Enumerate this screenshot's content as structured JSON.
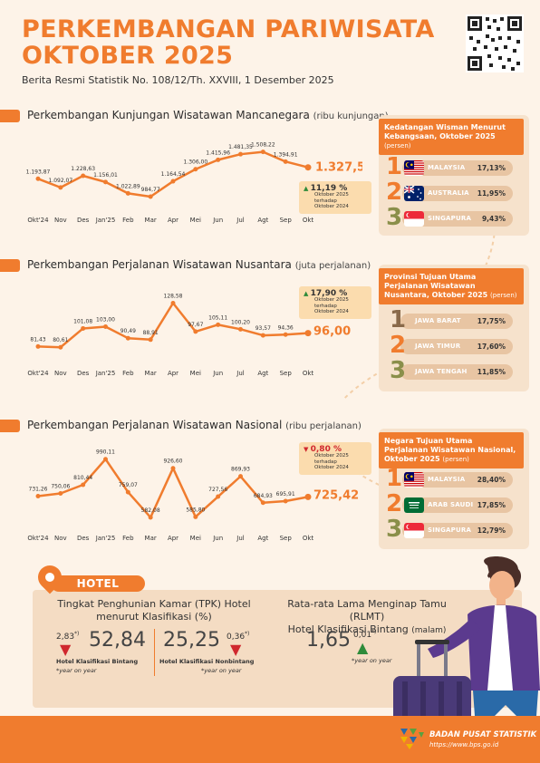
{
  "header": {
    "title_line1": "PERKEMBANGAN PARIWISATA",
    "title_line2": "OKTOBER 2025",
    "subtitle": "Berita Resmi Statistik No. 108/12/Th. XXVIII, 1 Desember 2025"
  },
  "months": [
    "Okt'24",
    "Nov",
    "Des",
    "Jan'25",
    "Feb",
    "Mar",
    "Apr",
    "Mei",
    "Jun",
    "Jul",
    "Agt",
    "Sep",
    "Okt"
  ],
  "sections": {
    "mancanegara": {
      "title": "Perkembangan Kunjungan Wisatawan Mancanegara",
      "unit": "(ribu kunjungan)",
      "labels": [
        "1.193,87",
        "1.092,07",
        "1.228,63",
        "1.156,01",
        "1.022,89",
        "984,77",
        "1.164,54",
        "1.306,00",
        "1.415,96",
        "1.481,35",
        "1.508,22",
        "1.394,91",
        "1.327,52"
      ],
      "callout": {
        "pct": "11,19 %",
        "line1": "Oktober 2025",
        "line2": "terhadap",
        "line3": "Oktober 2024",
        "direction": "up"
      }
    },
    "nusantara": {
      "title": "Perkembangan Perjalanan Wisatawan Nusantara",
      "unit": "(juta perjalanan)",
      "labels": [
        "81,43",
        "80,61",
        "101,08",
        "103,00",
        "90,49",
        "88,91",
        "128,58",
        "97,67",
        "105,11",
        "100,20",
        "93,57",
        "94,36",
        "96,00"
      ],
      "callout": {
        "pct": "17,90 %",
        "line1": "Oktober 2025",
        "line2": "terhadap",
        "line3": "Oktober 2024",
        "direction": "up"
      }
    },
    "nasional": {
      "title": "Perkembangan Perjalanan Wisatawan Nasional",
      "unit": "(ribu perjalanan)",
      "labels": [
        "731,26",
        "750,06",
        "810,44",
        "990,11",
        "759,07",
        "582,08",
        "926,60",
        "585,80",
        "727,56",
        "869,93",
        "684,93",
        "695,91",
        "725,42"
      ],
      "callout": {
        "pct": "0,80 %",
        "line1": "Oktober 2025",
        "line2": "terhadap",
        "line3": "Oktober 2024",
        "direction": "down"
      }
    }
  },
  "chart_data": [
    {
      "type": "line",
      "title": "Perkembangan Kunjungan Wisatawan Mancanegara",
      "ylabel": "ribu kunjungan",
      "x": [
        "Okt'24",
        "Nov",
        "Des",
        "Jan'25",
        "Feb",
        "Mar",
        "Apr",
        "Mei",
        "Jun",
        "Jul",
        "Agt",
        "Sep",
        "Okt"
      ],
      "values": [
        1193.87,
        1092.07,
        1228.63,
        1156.01,
        1022.89,
        984.77,
        1164.54,
        1306.0,
        1415.96,
        1481.35,
        1508.22,
        1394.91,
        1327.52
      ],
      "ylim": [
        900,
        1600
      ]
    },
    {
      "type": "line",
      "title": "Perkembangan Perjalanan Wisatawan Nusantara",
      "ylabel": "juta perjalanan",
      "x": [
        "Okt'24",
        "Nov",
        "Des",
        "Jan'25",
        "Feb",
        "Mar",
        "Apr",
        "Mei",
        "Jun",
        "Jul",
        "Agt",
        "Sep",
        "Okt"
      ],
      "values": [
        81.43,
        80.61,
        101.08,
        103.0,
        90.49,
        88.91,
        128.58,
        97.67,
        105.11,
        100.2,
        93.57,
        94.36,
        96.0
      ],
      "ylim": [
        70,
        135
      ]
    },
    {
      "type": "line",
      "title": "Perkembangan Perjalanan Wisatawan Nasional",
      "ylabel": "ribu perjalanan",
      "x": [
        "Okt'24",
        "Nov",
        "Des",
        "Jan'25",
        "Feb",
        "Mar",
        "Apr",
        "Mei",
        "Jun",
        "Jul",
        "Agt",
        "Sep",
        "Okt"
      ],
      "values": [
        731.26,
        750.06,
        810.44,
        990.11,
        759.07,
        582.08,
        926.6,
        585.8,
        727.56,
        869.93,
        684.93,
        695.91,
        725.42
      ],
      "ylim": [
        550,
        1020
      ]
    }
  ],
  "panels": {
    "wisman": {
      "title": "Kedatangan Wisman Menurut Kebangsaan, Oktober 2025",
      "unit": "(persen)",
      "items": [
        {
          "rank": "1",
          "name": "MALAYSIA",
          "value": "17,13%",
          "flag": "malaysia"
        },
        {
          "rank": "2",
          "name": "AUSTRALIA",
          "value": "11,95%",
          "flag": "australia"
        },
        {
          "rank": "3",
          "name": "SINGAPURA",
          "value": "9,43%",
          "flag": "singapura"
        }
      ]
    },
    "wisnus": {
      "title": "Provinsi Tujuan Utama Perjalanan Wisatawan Nusantara, Oktober 2025",
      "unit": "(persen)",
      "items": [
        {
          "rank": "1",
          "name": "JAWA BARAT",
          "value": "17,75%"
        },
        {
          "rank": "2",
          "name": "JAWA TIMUR",
          "value": "17,60%"
        },
        {
          "rank": "3",
          "name": "JAWA TENGAH",
          "value": "11,85%"
        }
      ]
    },
    "wisnas": {
      "title": "Negara Tujuan Utama Perjalanan Wisatawan Nasional, Oktober 2025",
      "unit": "(persen)",
      "items": [
        {
          "rank": "1",
          "name": "MALAYSIA",
          "value": "28,40%",
          "flag": "malaysia"
        },
        {
          "rank": "2",
          "name": "ARAB SAUDI",
          "value": "17,85%",
          "flag": "arab-saudi"
        },
        {
          "rank": "3",
          "name": "SINGAPURA",
          "value": "12,79%",
          "flag": "singapura"
        }
      ]
    }
  },
  "hotel": {
    "tab": "HOTEL",
    "tpk_title_1": "Tingkat Penghunian Kamar (TPK) Hotel",
    "tpk_title_2": "menurut Klasifikasi (%)",
    "bintang_change": "2,83",
    "bintang_sup": "*)",
    "bintang_value": "52,84",
    "bintang_label": "Hotel Klasifikasi Bintang",
    "bintang_note": "*year on year",
    "nonbintang_value": "25,25",
    "nonbintang_change": "0,36",
    "nonbintang_sup": "*)",
    "nonbintang_label": "Hotel Klasifikasi Nonbintang",
    "nonbintang_note": "*year on year",
    "rlmt_title_1": "Rata-rata Lama Menginap Tamu (RLMT)",
    "rlmt_title_2": "Hotel Klasifikasi Bintang",
    "rlmt_unit": "(malam)",
    "rlmt_value": "1,65",
    "rlmt_change": "0,01",
    "rlmt_sup": "*)",
    "rlmt_note": "*year on year"
  },
  "footer": {
    "org": "BADAN PUSAT STATISTIK",
    "url": "https://www.bps.go.id"
  },
  "colors": {
    "accent": "#f07c2e",
    "background": "#fdf3e8",
    "up": "#2e8b3a",
    "down": "#d0282e"
  }
}
